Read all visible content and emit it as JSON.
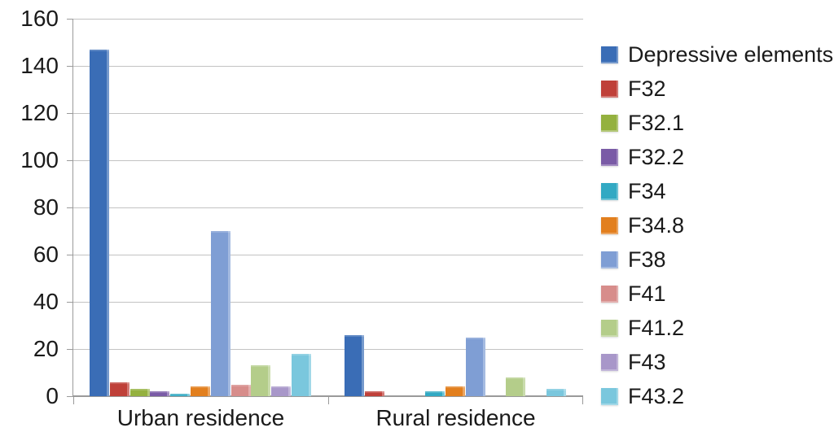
{
  "chart_data": {
    "type": "bar",
    "title": "",
    "categories": [
      "Urban residence",
      "Rural residence"
    ],
    "series": [
      {
        "name": "Depressive elements",
        "color": "#3a6db6",
        "values": [
          147,
          26
        ]
      },
      {
        "name": "F32",
        "color": "#bf4039",
        "values": [
          6,
          2
        ]
      },
      {
        "name": "F32.1",
        "color": "#94b13f",
        "values": [
          3,
          0
        ]
      },
      {
        "name": "F32.2",
        "color": "#7a5ba6",
        "values": [
          2,
          0
        ]
      },
      {
        "name": "F34",
        "color": "#32a9c3",
        "values": [
          1,
          2
        ]
      },
      {
        "name": "F34.8",
        "color": "#e27f1e",
        "values": [
          4,
          4
        ]
      },
      {
        "name": "F38",
        "color": "#7f9ed4",
        "values": [
          70,
          25
        ]
      },
      {
        "name": "F41",
        "color": "#d78d8b",
        "values": [
          5,
          0
        ]
      },
      {
        "name": "F41.2",
        "color": "#b4cd8a",
        "values": [
          13,
          8
        ]
      },
      {
        "name": "F43",
        "color": "#a897c9",
        "values": [
          4,
          0
        ]
      },
      {
        "name": "F43.2",
        "color": "#7ac7dd",
        "values": [
          18,
          3
        ]
      }
    ],
    "ylim": [
      0,
      160
    ],
    "ytick_step": 20,
    "y_ticks": [
      160,
      140,
      120,
      100,
      80,
      60,
      40,
      20,
      0
    ],
    "grid": true,
    "legend_position": "right"
  },
  "style_colors": {
    "gridline": "#c3c3c3",
    "axis": "#9a9a9a",
    "text": "#1a1a1a",
    "background": "#ffffff"
  }
}
